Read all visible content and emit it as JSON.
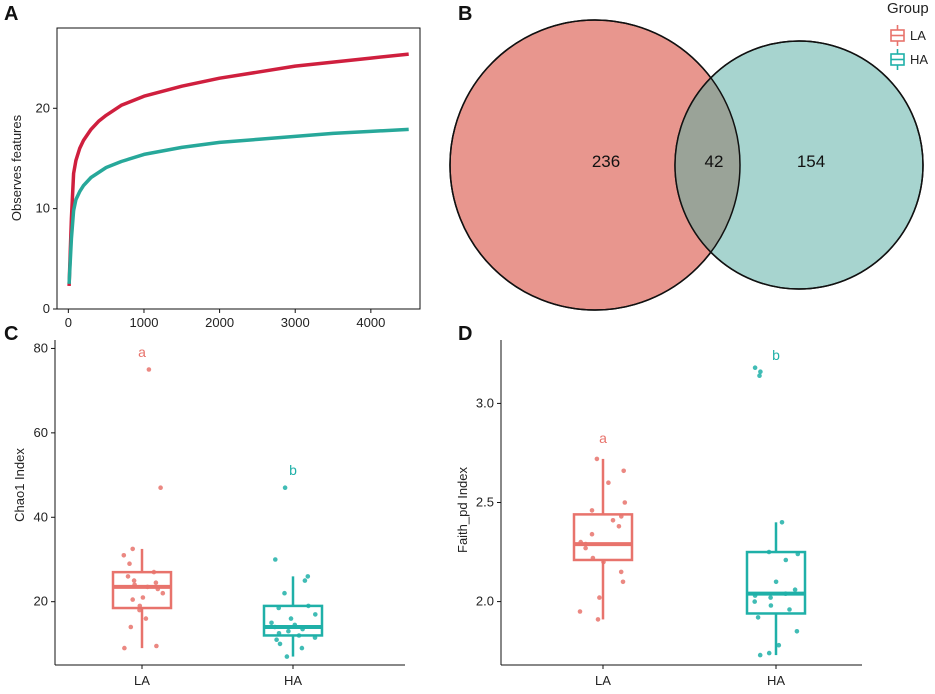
{
  "colors": {
    "LA": "#e8736c",
    "HA": "#1fb0a8",
    "LA_curve": "#cf1f3e",
    "HA_curve": "#27a89a",
    "venn_left": "#e8968e",
    "venn_right": "#a7d4cf",
    "venn_overlap": "#9aa398"
  },
  "legend": {
    "title": "Group",
    "items": [
      "LA",
      "HA"
    ]
  },
  "chart_data": [
    {
      "panel": "A",
      "type": "line",
      "title": "",
      "xlabel": "",
      "ylabel": "Observes features",
      "xlim": [
        -150,
        4650
      ],
      "ylim": [
        0,
        28
      ],
      "xticks": [
        0,
        1000,
        2000,
        3000,
        4000
      ],
      "xtick_labels": [
        "0",
        "1000",
        "2000",
        "3000",
        "4000"
      ],
      "yticks": [
        0,
        10,
        20
      ],
      "ytick_labels": [
        "0",
        "10",
        "20"
      ],
      "series": [
        {
          "name": "LA",
          "x": [
            10,
            40,
            70,
            100,
            150,
            200,
            300,
            400,
            500,
            700,
            1000,
            1500,
            2000,
            2500,
            3000,
            3500,
            4000,
            4500
          ],
          "values": [
            2.3,
            9.0,
            13.5,
            14.8,
            16.0,
            16.8,
            17.9,
            18.7,
            19.3,
            20.3,
            21.2,
            22.2,
            23.0,
            23.6,
            24.2,
            24.6,
            25.0,
            25.4
          ]
        },
        {
          "name": "HA",
          "x": [
            10,
            40,
            70,
            100,
            150,
            200,
            300,
            400,
            500,
            700,
            1000,
            1500,
            2000,
            2500,
            3000,
            3500,
            4000,
            4500
          ],
          "values": [
            2.5,
            7.0,
            9.8,
            10.9,
            11.7,
            12.3,
            13.1,
            13.6,
            14.1,
            14.7,
            15.4,
            16.1,
            16.6,
            16.9,
            17.2,
            17.5,
            17.7,
            17.9
          ]
        }
      ]
    },
    {
      "panel": "B",
      "type": "venn",
      "sets": [
        "LA",
        "HA"
      ],
      "counts": {
        "LA_only": "236",
        "shared": "42",
        "HA_only": "154"
      }
    },
    {
      "panel": "C",
      "type": "box",
      "ylabel": "Chao1 Index",
      "ylim": [
        5,
        82
      ],
      "yticks": [
        20,
        40,
        60,
        80
      ],
      "ytick_labels": [
        "20",
        "40",
        "60",
        "80"
      ],
      "categories": [
        "LA",
        "HA"
      ],
      "boxes": [
        {
          "name": "LA",
          "q1": 18.5,
          "median": 23.5,
          "q3": 27.0,
          "whisker_low": 9.0,
          "whisker_high": 32.5,
          "points": [
            75,
            47,
            32.5,
            31,
            29,
            27,
            26,
            25,
            24.5,
            24,
            23.5,
            23,
            22,
            21,
            20.5,
            19,
            18,
            16,
            14,
            9.5,
            9
          ]
        },
        {
          "name": "HA",
          "q1": 12.0,
          "median": 14.0,
          "q3": 19.0,
          "whisker_low": 7.0,
          "whisker_high": 26.0,
          "points": [
            47,
            30,
            26,
            25,
            22,
            19,
            18.5,
            17,
            16,
            15,
            14.5,
            14,
            13.5,
            13,
            12.5,
            12,
            11.5,
            11,
            10,
            9,
            7
          ]
        }
      ],
      "sig_letters": [
        "a",
        "b"
      ],
      "sig_values": [
        78,
        50
      ]
    },
    {
      "panel": "D",
      "type": "box",
      "ylabel": "Faith_pd Index",
      "ylim": [
        1.68,
        3.32
      ],
      "yticks": [
        2.0,
        2.5,
        3.0
      ],
      "ytick_labels": [
        "2.0",
        "2.5",
        "3.0"
      ],
      "categories": [
        "LA",
        "HA"
      ],
      "boxes": [
        {
          "name": "LA",
          "q1": 2.21,
          "median": 2.29,
          "q3": 2.44,
          "whisker_low": 1.91,
          "whisker_high": 2.72,
          "points": [
            2.72,
            2.66,
            2.6,
            2.5,
            2.46,
            2.43,
            2.41,
            2.38,
            2.34,
            2.3,
            2.29,
            2.27,
            2.22,
            2.2,
            2.15,
            2.1,
            2.02,
            1.95,
            1.91
          ]
        },
        {
          "name": "HA",
          "q1": 1.94,
          "median": 2.04,
          "q3": 2.25,
          "whisker_low": 1.73,
          "whisker_high": 2.4,
          "points": [
            3.18,
            3.16,
            3.14,
            2.4,
            2.25,
            2.24,
            2.21,
            2.1,
            2.06,
            2.04,
            2.03,
            2.02,
            2.0,
            1.98,
            1.96,
            1.92,
            1.85,
            1.78,
            1.74,
            1.73
          ]
        }
      ],
      "sig_letters": [
        "a",
        "b"
      ],
      "sig_values": [
        2.8,
        3.22
      ]
    }
  ]
}
